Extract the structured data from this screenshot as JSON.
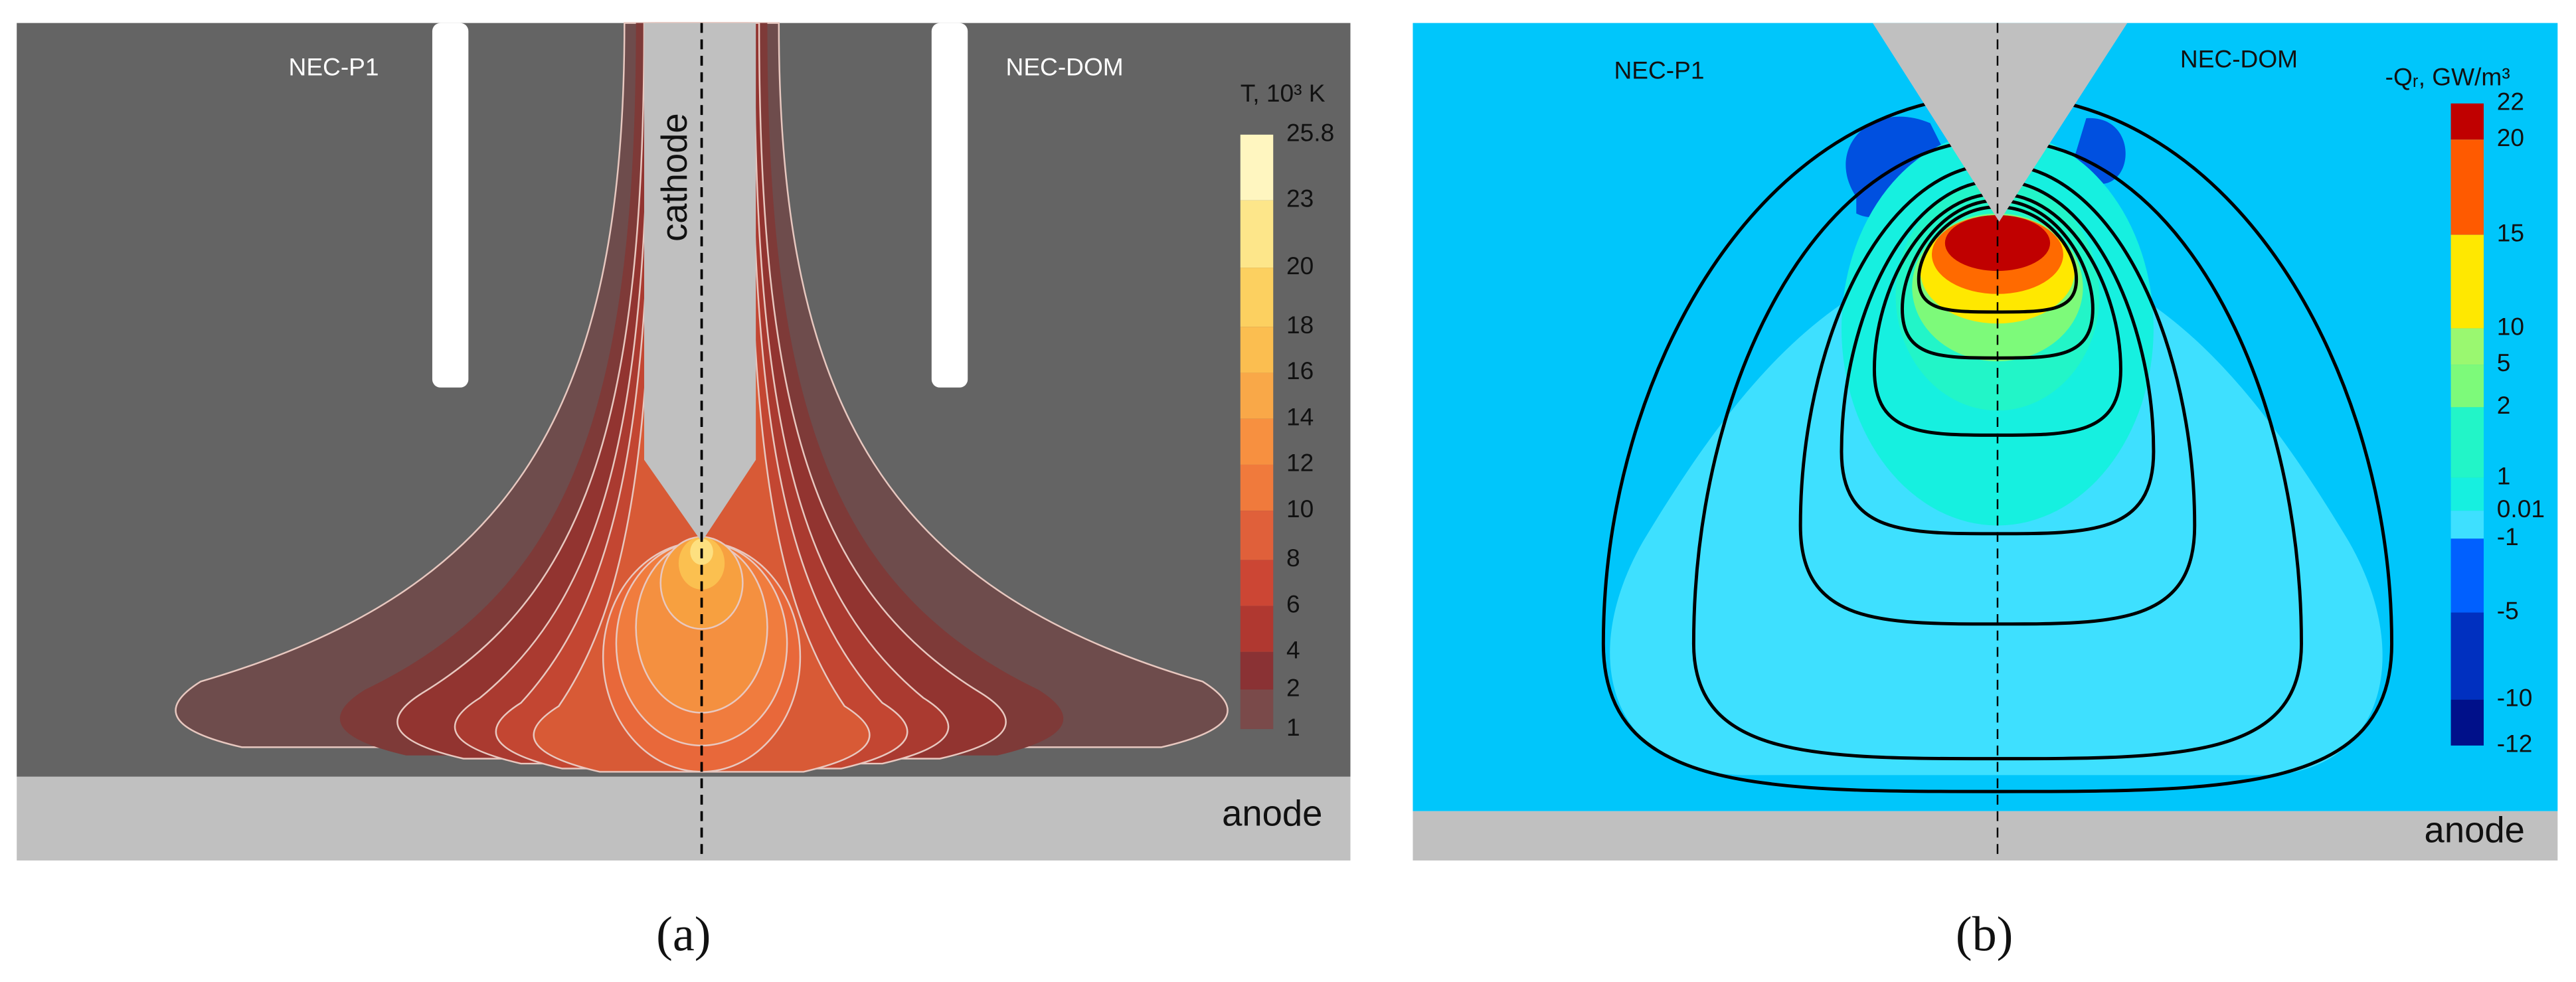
{
  "panels": [
    {
      "label": "(a)",
      "left_label": "NEC-P1",
      "right_label": "NEC-DOM",
      "cathode": "cathode",
      "anode": "anode",
      "colorbar": {
        "title": "T, 10³ K",
        "labels": [
          "25.8",
          "23",
          "20",
          "18",
          "16",
          "14",
          "12",
          "10",
          "8",
          "6",
          "4",
          "2",
          "1"
        ]
      }
    },
    {
      "label": "(b)",
      "left_label": "NEC-P1",
      "right_label": "NEC-DOM",
      "anode": "anode",
      "colorbar": {
        "title": "-Qᵣ, GW/m³",
        "labels": [
          "22",
          "20",
          "15",
          "10",
          "5",
          "2",
          "1",
          "0.01",
          "-1",
          "-5",
          "-10",
          "-12"
        ]
      }
    }
  ]
}
